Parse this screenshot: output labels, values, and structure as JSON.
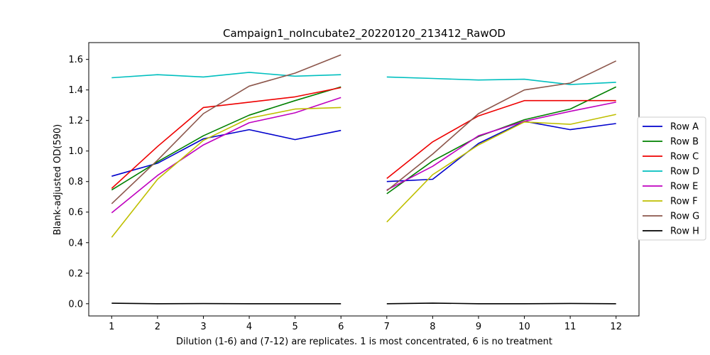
{
  "chart_data": {
    "type": "line",
    "title": "Campaign1_noIncubate2_20220120_213412_RawOD",
    "xlabel": "Dilution (1-6) and (7-12) are replicates. 1 is most concentrated, 6 is no treatment",
    "ylabel": "Blank-adjusted OD(590)",
    "xlim": [
      0.5,
      12.5
    ],
    "ylim": [
      -0.08,
      1.71
    ],
    "x_ticks": [
      1,
      2,
      3,
      4,
      5,
      6,
      7,
      8,
      9,
      10,
      11,
      12
    ],
    "y_ticks": [
      0.0,
      0.2,
      0.4,
      0.6,
      0.8,
      1.0,
      1.2,
      1.4,
      1.6
    ],
    "y_tick_labels": [
      "0.0",
      "0.2",
      "0.4",
      "0.6",
      "0.8",
      "1.0",
      "1.2",
      "1.4",
      "1.6"
    ],
    "grid": false,
    "legend_position": "right",
    "segments": [
      [
        1,
        2,
        3,
        4,
        5,
        6
      ],
      [
        7,
        8,
        9,
        10,
        11,
        12
      ]
    ],
    "series": [
      {
        "name": "Row A",
        "color": "#0000cc",
        "values": [
          0.835,
          0.92,
          1.08,
          1.14,
          1.075,
          1.135,
          0.8,
          0.815,
          1.05,
          1.195,
          1.14,
          1.18
        ]
      },
      {
        "name": "Row B",
        "color": "#008000",
        "values": [
          0.745,
          0.93,
          1.1,
          1.235,
          1.33,
          1.42,
          0.72,
          0.935,
          1.095,
          1.205,
          1.275,
          1.42
        ]
      },
      {
        "name": "Row C",
        "color": "#ee0000",
        "values": [
          0.755,
          1.03,
          1.285,
          1.32,
          1.355,
          1.415,
          0.82,
          1.06,
          1.23,
          1.33,
          1.33,
          1.33
        ]
      },
      {
        "name": "Row D",
        "color": "#00bfbf",
        "values": [
          1.48,
          1.5,
          1.485,
          1.515,
          1.49,
          1.5,
          1.485,
          1.475,
          1.465,
          1.47,
          1.435,
          1.45
        ]
      },
      {
        "name": "Row E",
        "color": "#bf00bf",
        "values": [
          0.595,
          0.84,
          1.04,
          1.185,
          1.25,
          1.35,
          0.745,
          0.9,
          1.1,
          1.195,
          1.26,
          1.32
        ]
      },
      {
        "name": "Row F",
        "color": "#bfbf00",
        "values": [
          0.435,
          0.815,
          1.07,
          1.215,
          1.275,
          1.285,
          0.535,
          0.845,
          1.04,
          1.19,
          1.175,
          1.24
        ]
      },
      {
        "name": "Row G",
        "color": "#8c564b",
        "values": [
          0.655,
          0.94,
          1.245,
          1.425,
          1.51,
          1.63,
          0.74,
          0.98,
          1.245,
          1.4,
          1.445,
          1.59
        ]
      },
      {
        "name": "Row H",
        "color": "#000000",
        "values": [
          0.003,
          0.0,
          0.001,
          0.0,
          0.0,
          0.0,
          0.0,
          0.004,
          0.0,
          0.0,
          0.002,
          0.0
        ]
      }
    ]
  }
}
